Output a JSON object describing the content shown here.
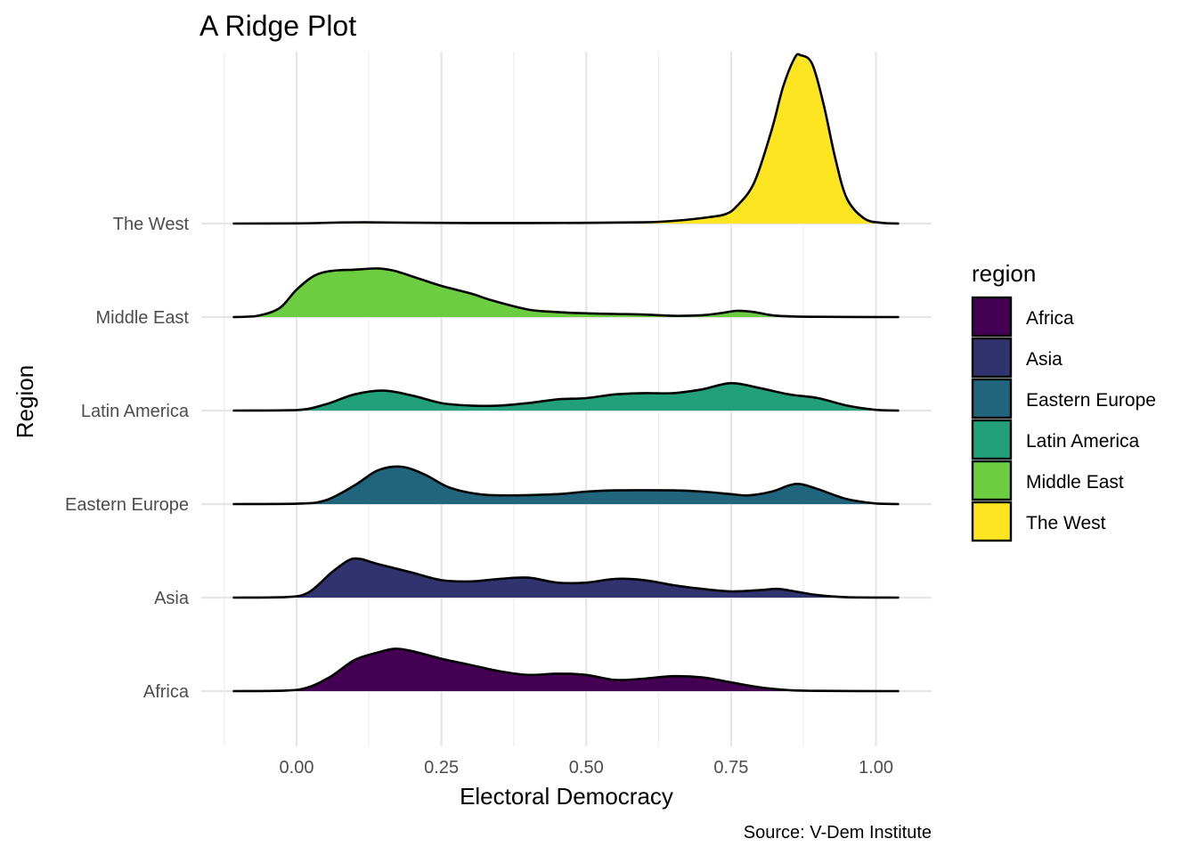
{
  "chart_data": {
    "type": "ridgeline",
    "title": "A Ridge Plot",
    "xlabel": "Electoral Democracy",
    "ylabel": "Region",
    "caption": "Source: V-Dem Institute",
    "xlim": [
      -0.13,
      1.05
    ],
    "x_ticks": [
      0.0,
      0.25,
      0.5,
      0.75,
      1.0
    ],
    "x_tick_labels": [
      "0.00",
      "0.25",
      "0.50",
      "0.75",
      "1.00"
    ],
    "grid": true,
    "legend": {
      "title": "region",
      "position": "right"
    },
    "categories": [
      "Africa",
      "Asia",
      "Eastern Europe",
      "Latin America",
      "Middle East",
      "The West"
    ],
    "series": [
      {
        "name": "Africa",
        "color": "#440154",
        "density": [
          [
            -0.11,
            0
          ],
          [
            -0.02,
            0.004
          ],
          [
            0.02,
            0.03
          ],
          [
            0.06,
            0.12
          ],
          [
            0.1,
            0.25
          ],
          [
            0.14,
            0.31
          ],
          [
            0.17,
            0.34
          ],
          [
            0.2,
            0.32
          ],
          [
            0.25,
            0.26
          ],
          [
            0.3,
            0.21
          ],
          [
            0.35,
            0.16
          ],
          [
            0.4,
            0.13
          ],
          [
            0.45,
            0.14
          ],
          [
            0.5,
            0.13
          ],
          [
            0.55,
            0.09
          ],
          [
            0.6,
            0.1
          ],
          [
            0.65,
            0.12
          ],
          [
            0.7,
            0.11
          ],
          [
            0.75,
            0.07
          ],
          [
            0.8,
            0.03
          ],
          [
            0.85,
            0.008
          ],
          [
            0.9,
            0.002
          ],
          [
            1.04,
            0
          ]
        ]
      },
      {
        "name": "Asia",
        "color": "#31336e",
        "density": [
          [
            -0.11,
            0
          ],
          [
            -0.02,
            0.004
          ],
          [
            0.02,
            0.04
          ],
          [
            0.06,
            0.2
          ],
          [
            0.09,
            0.3
          ],
          [
            0.11,
            0.31
          ],
          [
            0.14,
            0.27
          ],
          [
            0.2,
            0.2
          ],
          [
            0.25,
            0.14
          ],
          [
            0.3,
            0.13
          ],
          [
            0.35,
            0.15
          ],
          [
            0.4,
            0.16
          ],
          [
            0.45,
            0.12
          ],
          [
            0.5,
            0.12
          ],
          [
            0.55,
            0.15
          ],
          [
            0.6,
            0.14
          ],
          [
            0.65,
            0.1
          ],
          [
            0.7,
            0.07
          ],
          [
            0.75,
            0.05
          ],
          [
            0.8,
            0.06
          ],
          [
            0.83,
            0.07
          ],
          [
            0.86,
            0.05
          ],
          [
            0.9,
            0.02
          ],
          [
            0.95,
            0.003
          ],
          [
            1.04,
            0
          ]
        ]
      },
      {
        "name": "Eastern Europe",
        "color": "#21657d",
        "density": [
          [
            -0.11,
            0
          ],
          [
            0,
            0.003
          ],
          [
            0.05,
            0.03
          ],
          [
            0.1,
            0.15
          ],
          [
            0.14,
            0.27
          ],
          [
            0.18,
            0.3
          ],
          [
            0.22,
            0.24
          ],
          [
            0.26,
            0.14
          ],
          [
            0.3,
            0.09
          ],
          [
            0.35,
            0.07
          ],
          [
            0.45,
            0.08
          ],
          [
            0.5,
            0.1
          ],
          [
            0.55,
            0.11
          ],
          [
            0.65,
            0.11
          ],
          [
            0.7,
            0.1
          ],
          [
            0.75,
            0.08
          ],
          [
            0.78,
            0.07
          ],
          [
            0.82,
            0.1
          ],
          [
            0.85,
            0.15
          ],
          [
            0.87,
            0.16
          ],
          [
            0.9,
            0.12
          ],
          [
            0.95,
            0.04
          ],
          [
            1,
            0.005
          ],
          [
            1.04,
            0
          ]
        ]
      },
      {
        "name": "Latin America",
        "color": "#21a07a",
        "density": [
          [
            -0.11,
            0
          ],
          [
            0,
            0.004
          ],
          [
            0.05,
            0.05
          ],
          [
            0.1,
            0.13
          ],
          [
            0.15,
            0.16
          ],
          [
            0.2,
            0.12
          ],
          [
            0.25,
            0.06
          ],
          [
            0.3,
            0.04
          ],
          [
            0.35,
            0.04
          ],
          [
            0.4,
            0.06
          ],
          [
            0.45,
            0.09
          ],
          [
            0.5,
            0.1
          ],
          [
            0.55,
            0.13
          ],
          [
            0.6,
            0.14
          ],
          [
            0.65,
            0.14
          ],
          [
            0.7,
            0.17
          ],
          [
            0.75,
            0.22
          ],
          [
            0.8,
            0.18
          ],
          [
            0.85,
            0.13
          ],
          [
            0.9,
            0.1
          ],
          [
            0.95,
            0.04
          ],
          [
            1,
            0.006
          ],
          [
            1.04,
            0
          ]
        ]
      },
      {
        "name": "Middle East",
        "color": "#6ccd40",
        "density": [
          [
            -0.11,
            0
          ],
          [
            -0.07,
            0.008
          ],
          [
            -0.03,
            0.07
          ],
          [
            0,
            0.22
          ],
          [
            0.03,
            0.33
          ],
          [
            0.06,
            0.37
          ],
          [
            0.1,
            0.38
          ],
          [
            0.14,
            0.39
          ],
          [
            0.17,
            0.37
          ],
          [
            0.21,
            0.31
          ],
          [
            0.25,
            0.25
          ],
          [
            0.3,
            0.19
          ],
          [
            0.34,
            0.13
          ],
          [
            0.4,
            0.06
          ],
          [
            0.45,
            0.04
          ],
          [
            0.5,
            0.03
          ],
          [
            0.55,
            0.025
          ],
          [
            0.6,
            0.02
          ],
          [
            0.65,
            0.01
          ],
          [
            0.7,
            0.015
          ],
          [
            0.73,
            0.03
          ],
          [
            0.76,
            0.05
          ],
          [
            0.79,
            0.04
          ],
          [
            0.83,
            0.01
          ],
          [
            0.9,
            0.002
          ],
          [
            1.04,
            0
          ]
        ]
      },
      {
        "name": "The West",
        "color": "#fde621",
        "density": [
          [
            -0.11,
            0
          ],
          [
            0,
            0.001
          ],
          [
            0.07,
            0.008
          ],
          [
            0.12,
            0.01
          ],
          [
            0.17,
            0.008
          ],
          [
            0.3,
            0.004
          ],
          [
            0.45,
            0.005
          ],
          [
            0.6,
            0.01
          ],
          [
            0.66,
            0.025
          ],
          [
            0.71,
            0.05
          ],
          [
            0.74,
            0.075
          ],
          [
            0.76,
            0.14
          ],
          [
            0.79,
            0.33
          ],
          [
            0.82,
            0.75
          ],
          [
            0.84,
            1.1
          ],
          [
            0.86,
            1.33
          ],
          [
            0.87,
            1.35
          ],
          [
            0.89,
            1.28
          ],
          [
            0.91,
            0.95
          ],
          [
            0.93,
            0.52
          ],
          [
            0.95,
            0.2
          ],
          [
            0.98,
            0.04
          ],
          [
            1.01,
            0.006
          ],
          [
            1.04,
            0
          ]
        ]
      }
    ]
  }
}
